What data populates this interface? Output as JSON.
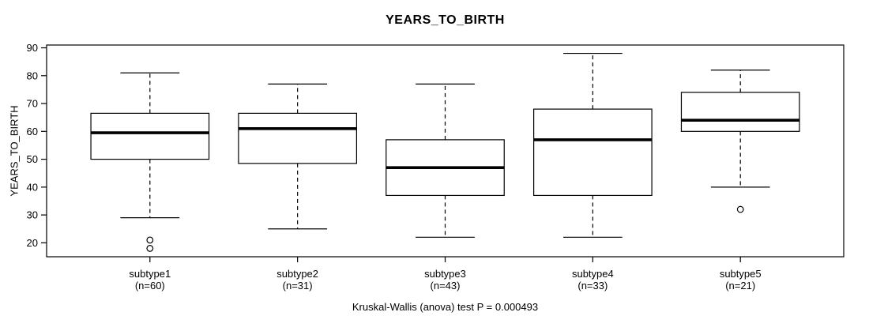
{
  "chart_data": {
    "type": "boxplot",
    "title": "YEARS_TO_BIRTH",
    "ylabel": "YEARS_TO_BIRTH",
    "xlabel": "",
    "footnote": "Kruskal-Wallis (anova) test P = 0.000493",
    "ylim": [
      15,
      91
    ],
    "yticks": [
      20,
      30,
      40,
      50,
      60,
      70,
      80,
      90
    ],
    "grid": false,
    "legend": "none",
    "box_fill": "#ffffff",
    "line_color": "#000000",
    "background_color": "#ffffff",
    "groups": [
      {
        "label": "subtype1",
        "sublabel": "(n=60)",
        "n": 60,
        "whisker_low": 29,
        "q1": 50,
        "median": 59.5,
        "q3": 66.5,
        "whisker_high": 81,
        "outliers": [
          21,
          18
        ]
      },
      {
        "label": "subtype2",
        "sublabel": "(n=31)",
        "n": 31,
        "whisker_low": 25,
        "q1": 48.5,
        "median": 61,
        "q3": 66.5,
        "whisker_high": 77,
        "outliers": []
      },
      {
        "label": "subtype3",
        "sublabel": "(n=43)",
        "n": 43,
        "whisker_low": 22,
        "q1": 37,
        "median": 47,
        "q3": 57,
        "whisker_high": 77,
        "outliers": []
      },
      {
        "label": "subtype4",
        "sublabel": "(n=33)",
        "n": 33,
        "whisker_low": 22,
        "q1": 37,
        "median": 57,
        "q3": 68,
        "whisker_high": 88,
        "outliers": []
      },
      {
        "label": "subtype5",
        "sublabel": "(n=21)",
        "n": 21,
        "whisker_low": 40,
        "q1": 60,
        "median": 64,
        "q3": 74,
        "whisker_high": 82,
        "outliers": [
          32
        ]
      }
    ]
  }
}
